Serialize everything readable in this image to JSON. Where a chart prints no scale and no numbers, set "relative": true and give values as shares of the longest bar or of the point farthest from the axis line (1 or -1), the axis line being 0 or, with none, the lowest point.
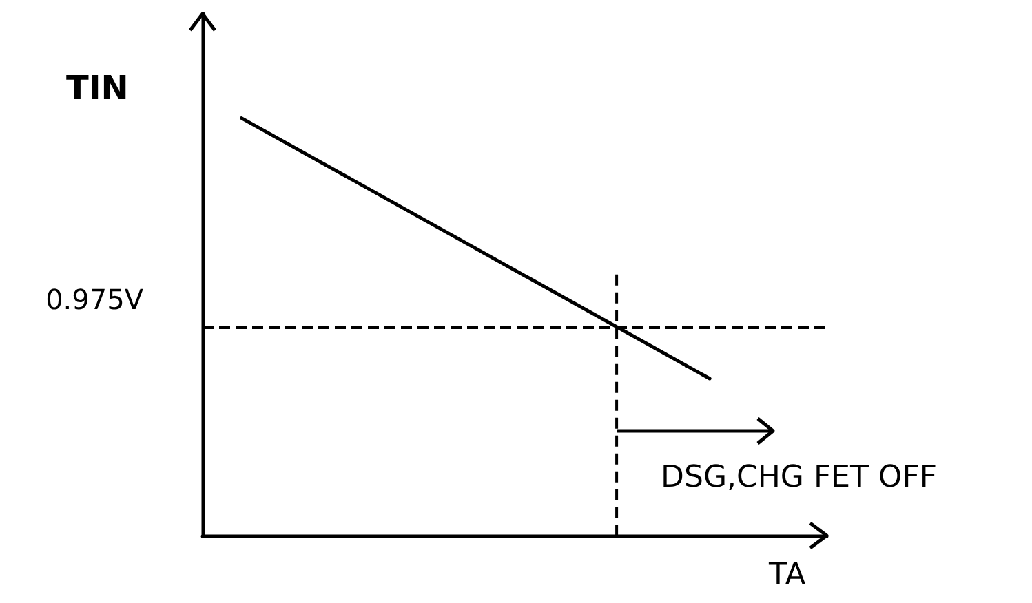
{
  "chart_data": {
    "type": "line",
    "relative": true,
    "xlabel": "TA",
    "ylabel": "TIN",
    "categories": [
      null,
      null,
      null,
      null,
      null,
      null,
      null,
      null,
      null,
      null,
      null,
      null,
      null,
      null,
      null,
      null,
      null,
      null,
      null,
      null,
      null,
      null,
      null,
      null,
      null,
      null,
      null,
      null,
      null,
      null,
      null,
      null,
      null
    ],
    "grid": false,
    "marker": "none",
    "line_style": "solid",
    "series": [
      {
        "color": "#000000",
        "values": [
          null,
          null,
          1,
          null,
          null,
          null,
          null,
          null,
          null,
          null,
          null,
          null,
          null,
          null,
          null,
          null,
          null,
          null,
          null,
          null,
          null,
          null,
          null,
          null,
          null,
          null,
          0.376,
          null,
          null,
          null,
          null,
          null,
          null
        ]
      }
    ],
    "ref_lines": [
      {
        "axis": "y",
        "value": 0.5,
        "label": "0.975V",
        "color": "#000000",
        "line_style": "dashed"
      }
    ],
    "annotations": [
      "DSG,CHG FET OFF"
    ]
  }
}
